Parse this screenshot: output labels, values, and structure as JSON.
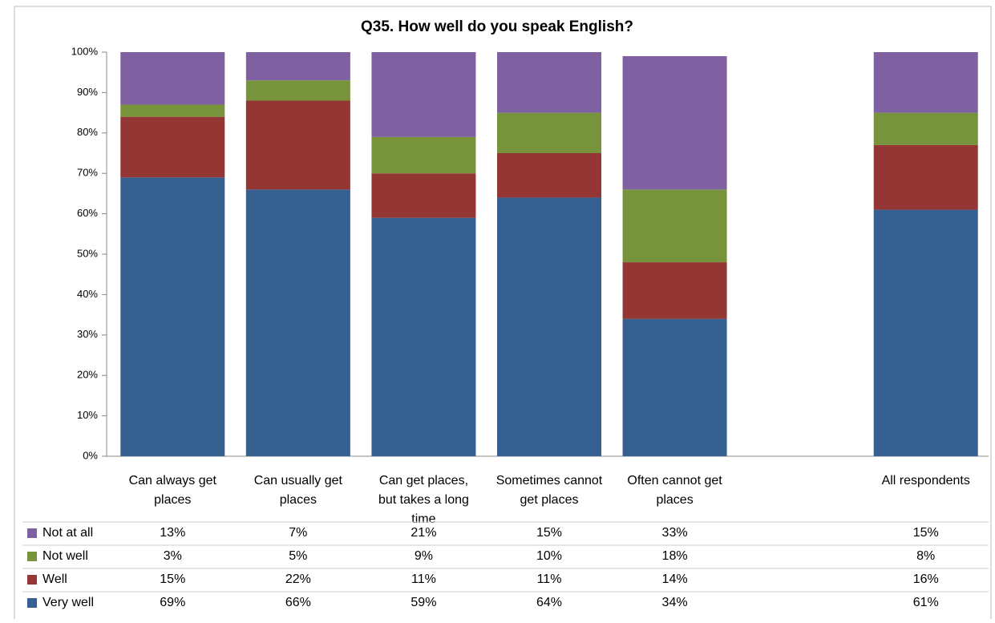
{
  "chart_data": {
    "type": "stacked_bar",
    "title": "Q35. How well do you speak English?",
    "categories": [
      "Can always get places",
      "Can usually get places",
      "Can get places, but takes a long time",
      "Sometimes cannot get places",
      "Often cannot get places",
      null,
      "All respondents"
    ],
    "series": [
      {
        "name": "Very well",
        "color": "#35608f",
        "values": [
          69,
          66,
          59,
          64,
          34,
          null,
          61
        ],
        "value_labels": [
          "69%",
          "66%",
          "59%",
          "64%",
          "34%",
          null,
          "61%"
        ]
      },
      {
        "name": "Well",
        "color": "#943634",
        "values": [
          15,
          22,
          11,
          11,
          14,
          null,
          16
        ],
        "value_labels": [
          "15%",
          "22%",
          "11%",
          "11%",
          "14%",
          null,
          "16%"
        ]
      },
      {
        "name": "Not well",
        "color": "#77933c",
        "values": [
          3,
          5,
          9,
          10,
          18,
          null,
          8
        ],
        "value_labels": [
          "3%",
          "5%",
          "9%",
          "10%",
          "18%",
          null,
          "8%"
        ]
      },
      {
        "name": "Not at all",
        "color": "#7f60a0",
        "values": [
          13,
          7,
          21,
          15,
          33,
          null,
          15
        ],
        "value_labels": [
          "13%",
          "7%",
          "21%",
          "15%",
          "33%",
          null,
          "15%"
        ]
      }
    ],
    "ylim": [
      0,
      100
    ],
    "yticks": [
      {
        "value": 0,
        "label": "0%"
      },
      {
        "value": 10,
        "label": "10%"
      },
      {
        "value": 20,
        "label": "20%"
      },
      {
        "value": 30,
        "label": "30%"
      },
      {
        "value": 40,
        "label": "40%"
      },
      {
        "value": 50,
        "label": "50%"
      },
      {
        "value": 60,
        "label": "60%"
      },
      {
        "value": 70,
        "label": "70%"
      },
      {
        "value": 80,
        "label": "80%"
      },
      {
        "value": 90,
        "label": "90%"
      },
      {
        "value": 100,
        "label": "100%"
      }
    ]
  }
}
